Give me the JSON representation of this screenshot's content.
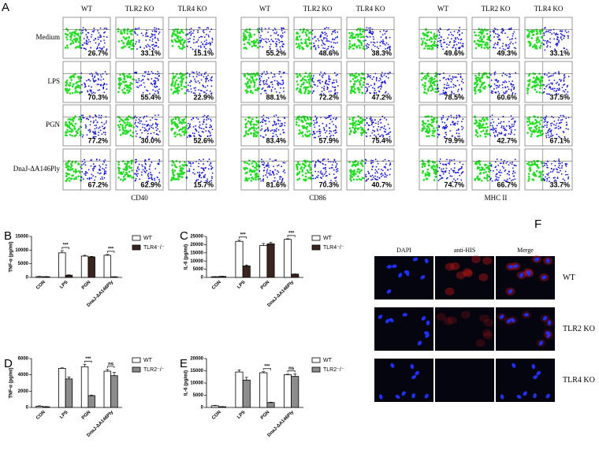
{
  "panel_a": {
    "label": "A",
    "genotypes": [
      "WT",
      "TLR2 KO",
      "TLR4 KO"
    ],
    "markers": [
      "CD40",
      "CD86",
      "MHC II"
    ],
    "treatments": [
      "Medium",
      "LPS",
      "PGN",
      "DnaJ-ΔA146Ply"
    ],
    "percentages": [
      [
        "26.7%",
        "33.1%",
        "15.1%",
        "55.2%",
        "48.6%",
        "38.3%",
        "49.6%",
        "49.3%",
        "33.1%"
      ],
      [
        "70.3%",
        "55.4%",
        "22.9%",
        "88.1%",
        "72.2%",
        "47.2%",
        "78.5%",
        "60.6%",
        "37.5%"
      ],
      [
        "77.2%",
        "30.0%",
        "52.6%",
        "83.4%",
        "57.9%",
        "75.4%",
        "79.9%",
        "42.7%",
        "67.1%"
      ],
      [
        "67.2%",
        "62.9%",
        "15.7%",
        "81.6%",
        "70.3%",
        "40.7%",
        "74.7%",
        "66.7%",
        "33.7%"
      ]
    ]
  },
  "chart_data": [
    {
      "type": "bar",
      "label": "B",
      "ylabel": "TNF-α (pg/ml)",
      "categories": [
        "CON",
        "LPS",
        "PGN",
        "DnaJ-ΔA146Ply"
      ],
      "series": [
        {
          "name": "WT",
          "color": "#ffffff",
          "values": [
            300,
            9000,
            7800,
            8100
          ],
          "errors": [
            100,
            800,
            300,
            300
          ]
        },
        {
          "name": "TLR4⁻/⁻",
          "color": "#3b2521",
          "values": [
            250,
            800,
            7500,
            200
          ],
          "errors": [
            80,
            150,
            200,
            60
          ]
        }
      ],
      "annotations": [
        null,
        "***",
        null,
        "***"
      ],
      "ylim": [
        0,
        15000
      ],
      "yticks": [
        0,
        5000,
        10000,
        15000
      ]
    },
    {
      "type": "bar",
      "label": "C",
      "ylabel": "IL-6 (pg/ml)",
      "categories": [
        "CON",
        "LPS",
        "PGN",
        "DnaJ-ΔA146Ply"
      ],
      "series": [
        {
          "name": "WT",
          "color": "#ffffff",
          "values": [
            400,
            22000,
            19500,
            23200
          ],
          "errors": [
            100,
            700,
            1200,
            400
          ]
        },
        {
          "name": "TLR4⁻/⁻",
          "color": "#3b2521",
          "values": [
            600,
            7000,
            20500,
            2000
          ],
          "errors": [
            100,
            600,
            800,
            150
          ]
        }
      ],
      "annotations": [
        null,
        "***",
        null,
        "***"
      ],
      "ylim": [
        0,
        25000
      ],
      "yticks": [
        0,
        5000,
        10000,
        15000,
        20000,
        25000
      ]
    },
    {
      "type": "bar",
      "label": "D",
      "ylabel": "TNF-α (pg/ml)",
      "categories": [
        "CON",
        "LPS",
        "PGN",
        "DnaJ-ΔA146Ply"
      ],
      "series": [
        {
          "name": "WT",
          "color": "#ffffff",
          "values": [
            150,
            4800,
            5000,
            4450
          ],
          "errors": [
            50,
            60,
            300,
            200
          ]
        },
        {
          "name": "TLR2⁻/⁻",
          "color": "#8c8c8c",
          "values": [
            80,
            3500,
            1450,
            3900
          ],
          "errors": [
            30,
            250,
            60,
            400
          ]
        }
      ],
      "annotations": [
        null,
        null,
        "***",
        "ns"
      ],
      "ylim": [
        0,
        6000
      ],
      "yticks": [
        0,
        2000,
        4000,
        6000
      ]
    },
    {
      "type": "bar",
      "label": "E",
      "ylabel": "IL-6 (pg/ml)",
      "categories": [
        "CON",
        "LPS",
        "PGN",
        "DnaJ-ΔA146Ply"
      ],
      "series": [
        {
          "name": "WT",
          "color": "#ffffff",
          "values": [
            700,
            14500,
            14200,
            13400
          ],
          "errors": [
            150,
            900,
            400,
            200
          ]
        },
        {
          "name": "TLR2⁻/⁻",
          "color": "#8c8c8c",
          "values": [
            300,
            11200,
            2000,
            12700
          ],
          "errors": [
            80,
            1100,
            150,
            1000
          ]
        }
      ],
      "annotations": [
        null,
        null,
        "***",
        "ns"
      ],
      "ylim": [
        0,
        20000
      ],
      "yticks": [
        0,
        5000,
        10000,
        15000,
        20000
      ]
    }
  ],
  "panel_f": {
    "label": "F",
    "columns": [
      "DAPI",
      "anti-HIS",
      "Merge"
    ],
    "rows": [
      "WT",
      "TLR2 KO",
      "TLR4 KO"
    ]
  }
}
